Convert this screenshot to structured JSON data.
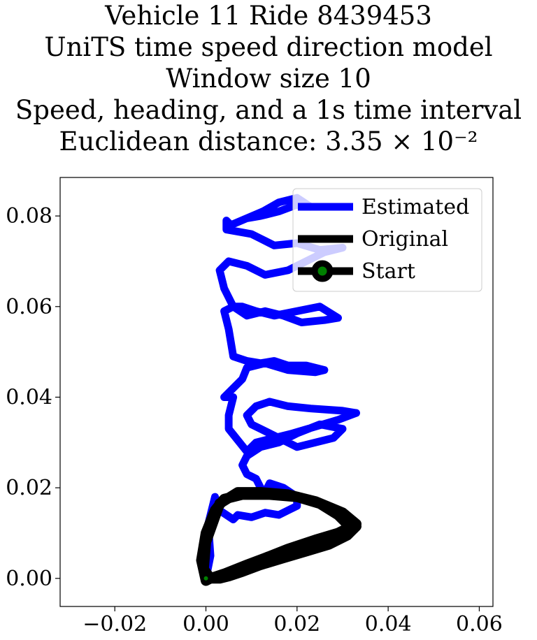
{
  "title_lines": [
    "Vehicle 11 Ride 8439453",
    "UniTS time speed direction model",
    "Window size 10",
    "Speed, heading, and a 1s time interval",
    "Euclidean distance: 3.35 × 10⁻²"
  ],
  "chart_data": {
    "type": "line",
    "title": "Vehicle 11 Ride 8439453 UniTS time speed direction model Window size 10 Speed, heading, and a 1s time interval Euclidean distance: 3.35 × 10⁻²",
    "xlabel": "",
    "ylabel": "",
    "xlim": [
      -0.032,
      0.063
    ],
    "ylim": [
      -0.0062,
      0.0885
    ],
    "xticks": [
      -0.02,
      0.0,
      0.02,
      0.04,
      0.06
    ],
    "xtick_labels": [
      "−0.02",
      "0.00",
      "0.02",
      "0.04",
      "0.06"
    ],
    "yticks": [
      0.0,
      0.02,
      0.04,
      0.06,
      0.08
    ],
    "ytick_labels": [
      "0.00",
      "0.02",
      "0.04",
      "0.06",
      "0.08"
    ],
    "grid": false,
    "legend_position": "upper-right",
    "series": [
      {
        "name": "Estimated",
        "color": "#0000ff",
        "x": [
          0.0,
          0.001,
          0.0005,
          0.002,
          0.003,
          0.006,
          0.007,
          0.01,
          0.013,
          0.016,
          0.018,
          0.02,
          0.02,
          0.017,
          0.014,
          0.013,
          0.012,
          0.011,
          0.009,
          0.008,
          0.009,
          0.012,
          0.016,
          0.02,
          0.025,
          0.03,
          0.028,
          0.024,
          0.02,
          0.016,
          0.012,
          0.01,
          0.009,
          0.011,
          0.014,
          0.018,
          0.023,
          0.03,
          0.033,
          0.029,
          0.024,
          0.019,
          0.015,
          0.011,
          0.009,
          0.005,
          0.005,
          0.006,
          0.004,
          0.008,
          0.009,
          0.013,
          0.018,
          0.024,
          0.026,
          0.022,
          0.018,
          0.015,
          0.012,
          0.009,
          0.006,
          0.005,
          0.004,
          0.006,
          0.008,
          0.011,
          0.015,
          0.02,
          0.025,
          0.029,
          0.026,
          0.021,
          0.017,
          0.013,
          0.009,
          0.006,
          0.004,
          0.003,
          0.005,
          0.009,
          0.013,
          0.018,
          0.022,
          0.026,
          0.03,
          0.025,
          0.02,
          0.015,
          0.012,
          0.01,
          0.0045,
          0.0045,
          0.0055,
          0.0125,
          0.016,
          0.02,
          0.023,
          0.02,
          0.016,
          0.012,
          0.009
        ],
        "y": [
          0.0,
          0.005,
          0.012,
          0.018,
          0.015,
          0.013,
          0.014,
          0.0135,
          0.0145,
          0.014,
          0.015,
          0.016,
          0.018,
          0.02,
          0.021,
          0.019,
          0.02,
          0.022,
          0.023,
          0.025,
          0.027,
          0.029,
          0.03,
          0.032,
          0.034,
          0.033,
          0.031,
          0.03,
          0.029,
          0.031,
          0.033,
          0.034,
          0.036,
          0.038,
          0.039,
          0.038,
          0.0375,
          0.037,
          0.0365,
          0.035,
          0.0335,
          0.032,
          0.031,
          0.03,
          0.028,
          0.033,
          0.036,
          0.04,
          0.04,
          0.044,
          0.0465,
          0.0475,
          0.046,
          0.0455,
          0.046,
          0.047,
          0.047,
          0.048,
          0.0475,
          0.048,
          0.049,
          0.055,
          0.059,
          0.06,
          0.06,
          0.059,
          0.058,
          0.059,
          0.06,
          0.0575,
          0.057,
          0.0565,
          0.058,
          0.059,
          0.058,
          0.06,
          0.064,
          0.068,
          0.07,
          0.069,
          0.067,
          0.068,
          0.07,
          0.072,
          0.073,
          0.0725,
          0.074,
          0.0735,
          0.075,
          0.076,
          0.077,
          0.079,
          0.078,
          0.081,
          0.083,
          0.084,
          0.082,
          0.0825,
          0.081,
          0.08,
          0.0795
        ]
      },
      {
        "name": "Original",
        "color": "#000000",
        "x": [
          0.0,
          -0.001,
          0.0,
          0.002,
          0.004,
          0.008,
          0.014,
          0.02,
          0.025,
          0.029,
          0.031,
          0.033,
          0.031,
          0.027,
          0.022,
          0.017,
          0.012,
          0.008,
          0.005,
          0.003,
          0.001,
          -0.0005,
          0.0,
          0.003,
          0.007,
          0.012,
          0.018,
          0.024,
          0.03,
          0.033,
          0.029,
          0.024,
          0.018,
          0.013,
          0.009,
          0.004,
          0.001,
          0.0
        ],
        "y": [
          -0.0005,
          0.004,
          0.01,
          0.015,
          0.0175,
          0.0185,
          0.0185,
          0.018,
          0.0165,
          0.014,
          0.012,
          0.0115,
          0.0095,
          0.0075,
          0.006,
          0.0045,
          0.003,
          0.0015,
          0.0005,
          0.0,
          0.0,
          0.002,
          0.008,
          0.0165,
          0.019,
          0.019,
          0.0185,
          0.017,
          0.0145,
          0.012,
          0.01,
          0.0085,
          0.0065,
          0.0045,
          0.003,
          0.001,
          0.0,
          -0.0005
        ]
      }
    ],
    "markers": [
      {
        "name": "Start",
        "x": 0.0,
        "y": 0.0,
        "color": "#008000",
        "edge_color": "#000000"
      }
    ]
  }
}
